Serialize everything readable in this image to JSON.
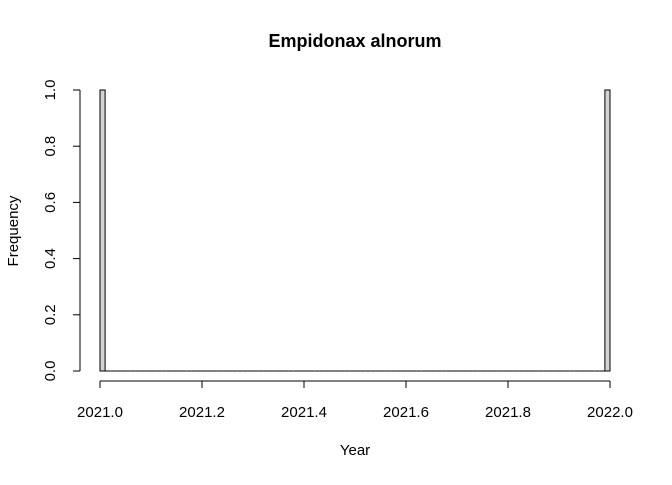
{
  "chart_data": {
    "type": "bar",
    "title": "Empidonax alnorum",
    "xlabel": "Year",
    "ylabel": "Frequency",
    "xlim": [
      2021.0,
      2022.0
    ],
    "ylim": [
      0.0,
      1.0
    ],
    "x_ticks": [
      2021.0,
      2021.2,
      2021.4,
      2021.6,
      2021.8,
      2022.0
    ],
    "x_tick_labels": [
      "2021.0",
      "2021.2",
      "2021.4",
      "2021.6",
      "2021.8",
      "2022.0"
    ],
    "y_ticks": [
      0.0,
      0.2,
      0.4,
      0.6,
      0.8,
      1.0
    ],
    "y_tick_labels": [
      "0.0",
      "0.2",
      "0.4",
      "0.6",
      "0.8",
      "1.0"
    ],
    "bin_width": 0.01,
    "bin_start": 2021.0,
    "frequencies": [
      1,
      0,
      0,
      0,
      0,
      0,
      0,
      0,
      0,
      0,
      0,
      0,
      0,
      0,
      0,
      0,
      0,
      0,
      0,
      0,
      0,
      0,
      0,
      0,
      0,
      0,
      0,
      0,
      0,
      0,
      0,
      0,
      0,
      0,
      0,
      0,
      0,
      0,
      0,
      0,
      0,
      0,
      0,
      0,
      0,
      0,
      0,
      0,
      0,
      0,
      0,
      0,
      0,
      0,
      0,
      0,
      0,
      0,
      0,
      0,
      0,
      0,
      0,
      0,
      0,
      0,
      0,
      0,
      0,
      0,
      0,
      0,
      0,
      0,
      0,
      0,
      0,
      0,
      0,
      0,
      0,
      0,
      0,
      0,
      0,
      0,
      0,
      0,
      0,
      0,
      0,
      0,
      0,
      0,
      0,
      0,
      0,
      0,
      0,
      1
    ],
    "bar_fill": "#d3d3d3",
    "bar_stroke": "#000000",
    "grid": false,
    "legend": "none"
  }
}
